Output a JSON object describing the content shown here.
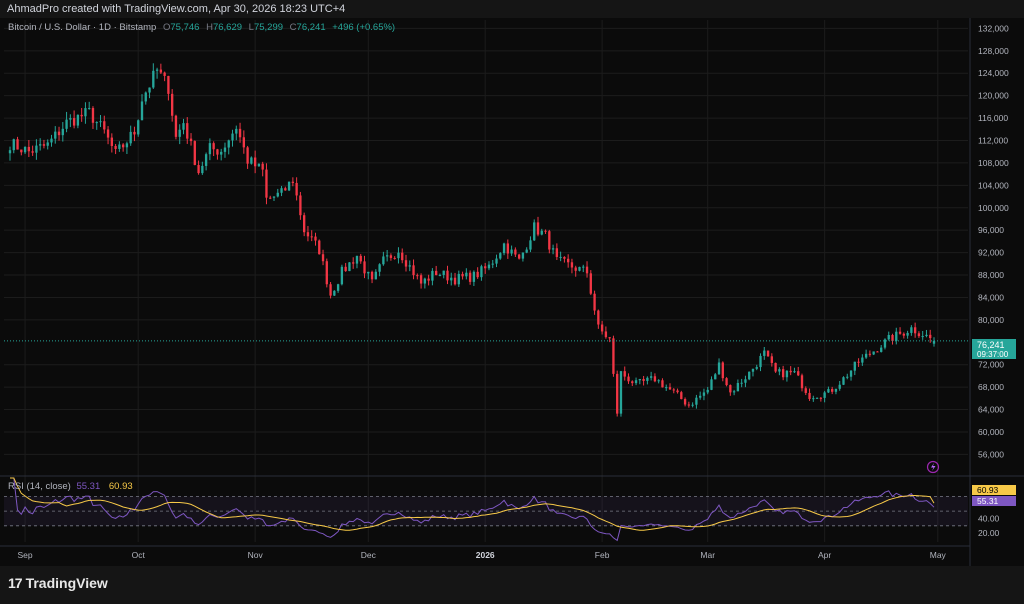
{
  "header": {
    "credit": "AhmadPro created with TradingView.com, Apr 30, 2026 18:23 UTC+4"
  },
  "legend": {
    "symbol": "Bitcoin / U.S. Dollar · 1D · Bitstamp",
    "open_label": "O",
    "open": "75,746",
    "high_label": "H",
    "high": "76,629",
    "low_label": "L",
    "low": "75,299",
    "close_label": "C",
    "close": "76,241",
    "change": "+496 (+0.65%)"
  },
  "rsi_legend": {
    "label": "RSI (14, close)",
    "rsi": "55.31",
    "ma": "60.93"
  },
  "price_badge": {
    "price": "76,241",
    "countdown": "09:37:00",
    "color": "#26a69a"
  },
  "rsi_badges": {
    "ma": "60.93",
    "ma_color": "#f7c948",
    "rsi": "55.31",
    "rsi_color": "#7e57c2"
  },
  "footer": {
    "brand_text": "TradingView",
    "logo_glyph": "17"
  },
  "colors": {
    "up": "#26a69a",
    "down": "#f23645",
    "rsi": "#7e57c2",
    "rsi_ma": "#f7c948",
    "grid": "#1c1c1c"
  },
  "chart_data": {
    "type": "candlestick",
    "symbol": "BTCUSD",
    "timeframe": "1D",
    "y_ticks": [
      "132,000",
      "128,000",
      "124,000",
      "120,000",
      "116,000",
      "112,000",
      "108,000",
      "104,000",
      "100,000",
      "96,000",
      "92,000",
      "88,000",
      "84,000",
      "80,000",
      "72,000",
      "68,000",
      "64,000",
      "60,000",
      "56,000"
    ],
    "ylim": [
      52500,
      133500
    ],
    "x_ticks": [
      {
        "label": "Sep",
        "date": "2025-09-01"
      },
      {
        "label": "Oct",
        "date": "2025-10-01"
      },
      {
        "label": "Nov",
        "date": "2025-11-01"
      },
      {
        "label": "Dec",
        "date": "2025-12-01"
      },
      {
        "label": "2026",
        "date": "2026-01-01"
      },
      {
        "label": "Feb",
        "date": "2026-02-01"
      },
      {
        "label": "Mar",
        "date": "2026-03-01"
      },
      {
        "label": "Apr",
        "date": "2026-04-01"
      },
      {
        "label": "May",
        "date": "2026-05-01"
      }
    ],
    "first_date": "2025-08-28",
    "last_date": "2026-04-30",
    "close_anchors": [
      [
        "2025-08-28",
        111500
      ],
      [
        "2025-09-02",
        110000
      ],
      [
        "2025-09-07",
        111200
      ],
      [
        "2025-09-12",
        115200
      ],
      [
        "2025-09-18",
        117000
      ],
      [
        "2025-09-22",
        113500
      ],
      [
        "2025-09-25",
        109500
      ],
      [
        "2025-09-30",
        113500
      ],
      [
        "2025-10-02",
        119500
      ],
      [
        "2025-10-06",
        124500
      ],
      [
        "2025-10-09",
        121500
      ],
      [
        "2025-10-11",
        112500
      ],
      [
        "2025-10-13",
        115300
      ],
      [
        "2025-10-17",
        106500
      ],
      [
        "2025-10-20",
        110500
      ],
      [
        "2025-10-23",
        110200
      ],
      [
        "2025-10-27",
        114500
      ],
      [
        "2025-10-30",
        108500
      ],
      [
        "2025-11-03",
        106500
      ],
      [
        "2025-11-04",
        101500
      ],
      [
        "2025-11-08",
        102500
      ],
      [
        "2025-11-11",
        105000
      ],
      [
        "2025-11-14",
        96000
      ],
      [
        "2025-11-18",
        92500
      ],
      [
        "2025-11-21",
        84500
      ],
      [
        "2025-11-24",
        88500
      ],
      [
        "2025-11-28",
        91500
      ],
      [
        "2025-12-02",
        86500
      ],
      [
        "2025-12-05",
        90500
      ],
      [
        "2025-12-09",
        92500
      ],
      [
        "2025-12-12",
        89500
      ],
      [
        "2025-12-15",
        86500
      ],
      [
        "2025-12-19",
        88500
      ],
      [
        "2025-12-24",
        87300
      ],
      [
        "2025-12-29",
        87800
      ],
      [
        "2026-01-02",
        89500
      ],
      [
        "2026-01-06",
        93500
      ],
      [
        "2026-01-10",
        90500
      ],
      [
        "2026-01-14",
        96500
      ],
      [
        "2026-01-17",
        95000
      ],
      [
        "2026-01-20",
        90500
      ],
      [
        "2026-01-24",
        89500
      ],
      [
        "2026-01-28",
        88500
      ],
      [
        "2026-01-31",
        78500
      ],
      [
        "2026-02-03",
        76500
      ],
      [
        "2026-02-05",
        63500
      ],
      [
        "2026-02-06",
        70500
      ],
      [
        "2026-02-10",
        68500
      ],
      [
        "2026-02-15",
        69500
      ],
      [
        "2026-02-20",
        67000
      ],
      [
        "2026-02-24",
        64800
      ],
      [
        "2026-03-01",
        67500
      ],
      [
        "2026-03-04",
        72000
      ],
      [
        "2026-03-07",
        67000
      ],
      [
        "2026-03-12",
        70500
      ],
      [
        "2026-03-16",
        74000
      ],
      [
        "2026-03-19",
        70500
      ],
      [
        "2026-03-24",
        70500
      ],
      [
        "2026-03-28",
        66500
      ],
      [
        "2026-04-02",
        67000
      ],
      [
        "2026-04-06",
        69500
      ],
      [
        "2026-04-10",
        72500
      ],
      [
        "2026-04-14",
        74500
      ],
      [
        "2026-04-18",
        76500
      ],
      [
        "2026-04-21",
        77500
      ],
      [
        "2026-04-24",
        78500
      ],
      [
        "2026-04-27",
        77500
      ],
      [
        "2026-04-30",
        76241
      ]
    ],
    "rsi": {
      "name": "RSI (14, close)",
      "y_ticks": [
        "40.00",
        "20.00"
      ],
      "ylim": [
        8,
        95
      ],
      "bands": [
        70,
        50,
        30
      ],
      "last_rsi": 55.31,
      "last_ma": 60.93
    }
  }
}
